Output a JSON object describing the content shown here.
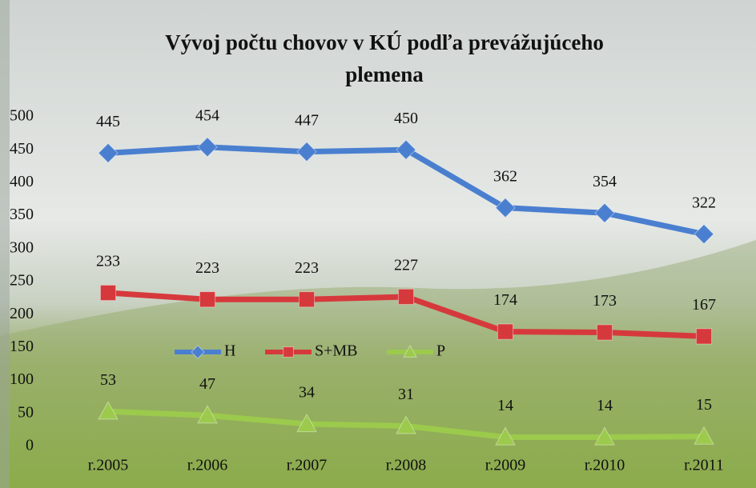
{
  "chart_data": {
    "type": "line",
    "title": "Vývoj počtu chovov v KÚ podľa prevážujúceho plemena",
    "categories": [
      "r.2005",
      "r.2006",
      "r.2007",
      "r.2008",
      "r.2009",
      "r.2010",
      "r.2011"
    ],
    "series": [
      {
        "name": "H",
        "color": "#4a7fd0",
        "marker": "diamond",
        "values": [
          445,
          454,
          447,
          450,
          362,
          354,
          322
        ]
      },
      {
        "name": "S+MB",
        "color": "#d6393c",
        "marker": "square",
        "values": [
          233,
          223,
          223,
          227,
          174,
          173,
          167
        ]
      },
      {
        "name": "P",
        "color": "#9cca4c",
        "marker": "triangle",
        "values": [
          53,
          47,
          34,
          31,
          14,
          14,
          15
        ]
      }
    ],
    "ylim": [
      0,
      500
    ],
    "yticks": [
      0,
      50,
      100,
      150,
      200,
      250,
      300,
      350,
      400,
      450,
      500
    ],
    "grid": false,
    "legend": "center"
  }
}
